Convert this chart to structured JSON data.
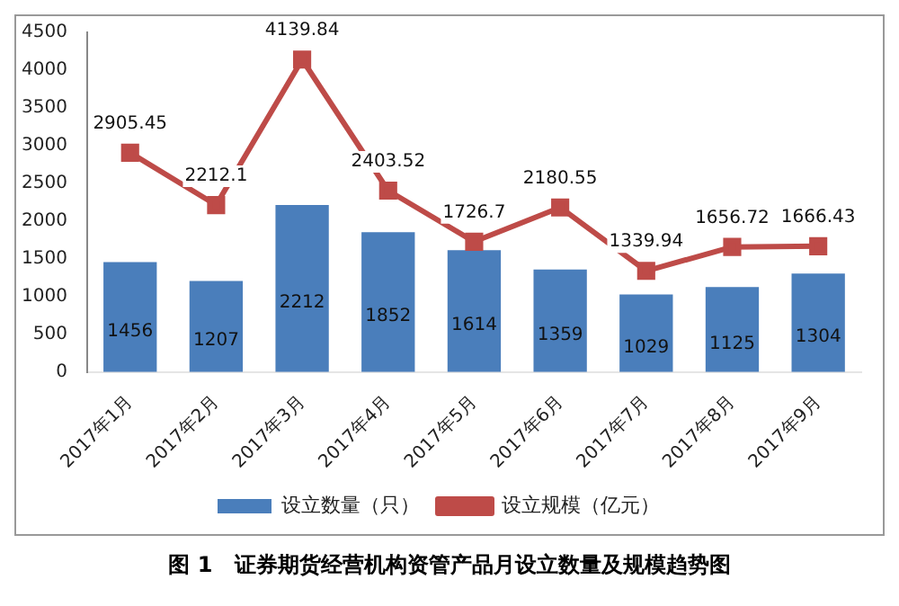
{
  "chart_data": {
    "type": "bar",
    "title": "图 1　证券期货经营机构资管产品月设立数量及规模趋势图",
    "categories": [
      "2017年1月",
      "2017年2月",
      "2017年3月",
      "2017年4月",
      "2017年5月",
      "2017年6月",
      "2017年7月",
      "2017年8月",
      "2017年9月"
    ],
    "series": [
      {
        "name": "设立数量（只）",
        "color": "#4a7ebb",
        "values": [
          1456,
          1207,
          2212,
          1852,
          1614,
          1359,
          1029,
          1125,
          1304
        ]
      },
      {
        "name": "设立规模（亿元）",
        "type": "line",
        "color": "#be4b48",
        "values": [
          2905.45,
          2212.1,
          4139.84,
          2403.52,
          1726.7,
          2180.55,
          1339.94,
          1656.72,
          1666.43
        ]
      }
    ],
    "ylim": [
      0,
      4500
    ],
    "yticks": [
      0,
      500,
      1000,
      1500,
      2000,
      2500,
      3000,
      3500,
      4000,
      4500
    ],
    "grid": false,
    "legend": "bottom",
    "marker": "square",
    "data_labels": true
  }
}
